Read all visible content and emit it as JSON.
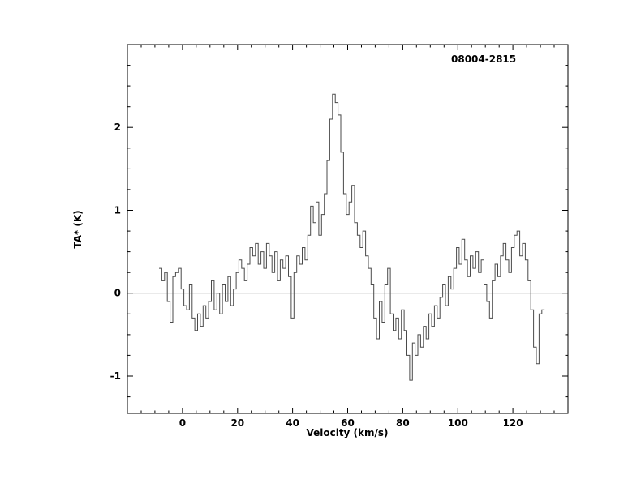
{
  "chart_data": {
    "type": "line",
    "style": "histogram-step",
    "title": "08004-2815",
    "xlabel": "Velocity (km/s)",
    "ylabel": "TA* (K)",
    "xlim": [
      -20,
      140
    ],
    "ylim": [
      -1.45,
      3.0
    ],
    "x_ticks": [
      0,
      20,
      40,
      60,
      80,
      100,
      120
    ],
    "y_ticks": [
      -1,
      0,
      1,
      2
    ],
    "x_minor_step": 5,
    "y_minor_step": 0.25,
    "zero_line": 0,
    "line_color": "#4a4a4a",
    "axis_color": "#000000",
    "background_color": "#ffffff",
    "legend": "none",
    "grid": "off",
    "x_start": -8,
    "x_step": 1,
    "values": [
      0.3,
      0.15,
      0.25,
      -0.1,
      -0.35,
      0.2,
      0.25,
      0.3,
      0.05,
      -0.15,
      -0.2,
      0.1,
      -0.3,
      -0.45,
      -0.25,
      -0.4,
      -0.15,
      -0.3,
      -0.1,
      0.15,
      -0.2,
      0.0,
      -0.25,
      0.1,
      -0.1,
      0.2,
      -0.15,
      0.05,
      0.25,
      0.4,
      0.3,
      0.15,
      0.35,
      0.55,
      0.45,
      0.6,
      0.35,
      0.5,
      0.3,
      0.6,
      0.45,
      0.25,
      0.5,
      0.15,
      0.4,
      0.3,
      0.45,
      0.2,
      -0.3,
      0.25,
      0.45,
      0.35,
      0.55,
      0.4,
      0.7,
      1.05,
      0.85,
      1.1,
      0.7,
      0.95,
      1.2,
      1.6,
      2.1,
      2.4,
      2.3,
      2.15,
      1.7,
      1.2,
      0.95,
      1.1,
      1.3,
      0.85,
      0.7,
      0.55,
      0.75,
      0.45,
      0.3,
      0.1,
      -0.3,
      -0.55,
      -0.1,
      -0.35,
      0.1,
      0.3,
      -0.25,
      -0.45,
      -0.3,
      -0.55,
      -0.2,
      -0.45,
      -0.75,
      -1.05,
      -0.6,
      -0.75,
      -0.5,
      -0.65,
      -0.4,
      -0.55,
      -0.25,
      -0.4,
      -0.15,
      -0.3,
      -0.05,
      0.1,
      -0.15,
      0.2,
      0.05,
      0.3,
      0.55,
      0.35,
      0.65,
      0.4,
      0.2,
      0.45,
      0.3,
      0.5,
      0.25,
      0.4,
      0.1,
      -0.1,
      -0.3,
      0.15,
      0.35,
      0.2,
      0.45,
      0.6,
      0.4,
      0.25,
      0.55,
      0.7,
      0.75,
      0.45,
      0.6,
      0.4,
      0.15,
      -0.2,
      -0.65,
      -0.85,
      -0.25,
      -0.2
    ]
  }
}
